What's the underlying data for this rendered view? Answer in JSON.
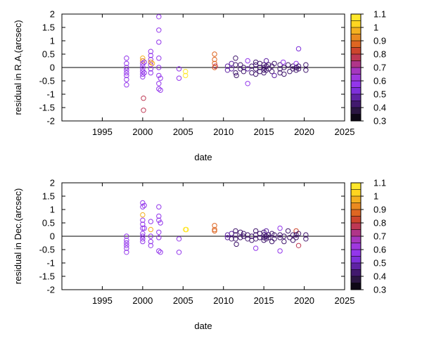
{
  "chart_data": [
    {
      "type": "scatter",
      "xlabel": "date",
      "ylabel": "residual in R.A.(arcsec)",
      "xlim": [
        1990,
        2025
      ],
      "ylim": [
        -2,
        2
      ],
      "xticks": [
        "1995",
        "2000",
        "2005",
        "2010",
        "2015",
        "2020",
        "2025"
      ],
      "yticks": [
        "-2",
        "-1.5",
        "-1",
        "-0.5",
        "0",
        "0.5",
        "1",
        "1.5",
        "2"
      ],
      "zero_line": true,
      "points": [
        {
          "x": 1998.0,
          "y": 0.35,
          "c": 0.55
        },
        {
          "x": 1998.0,
          "y": 0.15,
          "c": 0.55
        },
        {
          "x": 1998.0,
          "y": 0.0,
          "c": 0.55
        },
        {
          "x": 1998.0,
          "y": -0.1,
          "c": 0.55
        },
        {
          "x": 1998.0,
          "y": -0.2,
          "c": 0.55
        },
        {
          "x": 1998.0,
          "y": -0.3,
          "c": 0.55
        },
        {
          "x": 1998.0,
          "y": -0.45,
          "c": 0.55
        },
        {
          "x": 1998.0,
          "y": -0.65,
          "c": 0.55
        },
        {
          "x": 2000.0,
          "y": 0.35,
          "c": 1.0
        },
        {
          "x": 2000.0,
          "y": 0.25,
          "c": 0.9
        },
        {
          "x": 2000.0,
          "y": 0.15,
          "c": 0.6
        },
        {
          "x": 2000.0,
          "y": 0.05,
          "c": 0.6
        },
        {
          "x": 2000.0,
          "y": -0.05,
          "c": 0.6
        },
        {
          "x": 2000.0,
          "y": -0.15,
          "c": 0.6
        },
        {
          "x": 2000.0,
          "y": -0.25,
          "c": 0.6
        },
        {
          "x": 2000.0,
          "y": -0.35,
          "c": 0.6
        },
        {
          "x": 2000.1,
          "y": -1.15,
          "c": 0.75
        },
        {
          "x": 2000.1,
          "y": -1.6,
          "c": 0.75
        },
        {
          "x": 2000.2,
          "y": 0.2,
          "c": 0.6
        },
        {
          "x": 2000.2,
          "y": -0.2,
          "c": 0.6
        },
        {
          "x": 2001.0,
          "y": 0.6,
          "c": 0.55
        },
        {
          "x": 2001.0,
          "y": 0.45,
          "c": 0.55
        },
        {
          "x": 2001.0,
          "y": 0.3,
          "c": 0.55
        },
        {
          "x": 2001.0,
          "y": 0.2,
          "c": 0.95
        },
        {
          "x": 2001.0,
          "y": 0.1,
          "c": 0.55
        },
        {
          "x": 2001.0,
          "y": -0.05,
          "c": 0.55
        },
        {
          "x": 2001.0,
          "y": -0.2,
          "c": 0.55
        },
        {
          "x": 2001.2,
          "y": 0.15,
          "c": 1.0
        },
        {
          "x": 2002.0,
          "y": 1.9,
          "c": 0.55
        },
        {
          "x": 2002.0,
          "y": 1.4,
          "c": 0.55
        },
        {
          "x": 2002.0,
          "y": 0.95,
          "c": 0.55
        },
        {
          "x": 2002.0,
          "y": 0.35,
          "c": 0.55
        },
        {
          "x": 2002.0,
          "y": 0.0,
          "c": 0.55
        },
        {
          "x": 2002.0,
          "y": -0.3,
          "c": 0.55
        },
        {
          "x": 2002.0,
          "y": -0.6,
          "c": 0.55
        },
        {
          "x": 2002.0,
          "y": -0.8,
          "c": 0.55
        },
        {
          "x": 2002.2,
          "y": -0.4,
          "c": 0.55
        },
        {
          "x": 2002.2,
          "y": -0.85,
          "c": 0.55
        },
        {
          "x": 2004.5,
          "y": -0.05,
          "c": 0.55
        },
        {
          "x": 2004.5,
          "y": -0.4,
          "c": 0.55
        },
        {
          "x": 2005.3,
          "y": -0.15,
          "c": 1.05
        },
        {
          "x": 2005.3,
          "y": -0.3,
          "c": 1.05
        },
        {
          "x": 2008.9,
          "y": 0.5,
          "c": 0.85
        },
        {
          "x": 2008.9,
          "y": 0.3,
          "c": 0.85
        },
        {
          "x": 2008.9,
          "y": 0.15,
          "c": 0.85
        },
        {
          "x": 2008.9,
          "y": 0.0,
          "c": 0.85
        },
        {
          "x": 2009.0,
          "y": 0.05,
          "c": 0.75
        },
        {
          "x": 2010.5,
          "y": -0.1,
          "c": 0.45
        },
        {
          "x": 2010.5,
          "y": 0.05,
          "c": 0.45
        },
        {
          "x": 2011.0,
          "y": 0.15,
          "c": 0.45
        },
        {
          "x": 2011.0,
          "y": -0.05,
          "c": 0.45
        },
        {
          "x": 2011.5,
          "y": 0.35,
          "c": 0.4
        },
        {
          "x": 2011.5,
          "y": 0.1,
          "c": 0.4
        },
        {
          "x": 2011.5,
          "y": -0.2,
          "c": 0.4
        },
        {
          "x": 2011.6,
          "y": -0.3,
          "c": 0.4
        },
        {
          "x": 2012.1,
          "y": 0.1,
          "c": 0.4
        },
        {
          "x": 2012.1,
          "y": -0.05,
          "c": 0.4
        },
        {
          "x": 2012.5,
          "y": 0.0,
          "c": 0.4
        },
        {
          "x": 2012.5,
          "y": -0.15,
          "c": 0.4
        },
        {
          "x": 2013.0,
          "y": 0.25,
          "c": 0.55
        },
        {
          "x": 2013.0,
          "y": -0.05,
          "c": 0.45
        },
        {
          "x": 2013.0,
          "y": -0.6,
          "c": 0.55
        },
        {
          "x": 2013.5,
          "y": 0.05,
          "c": 0.4
        },
        {
          "x": 2013.5,
          "y": -0.2,
          "c": 0.4
        },
        {
          "x": 2014.0,
          "y": 0.2,
          "c": 0.4
        },
        {
          "x": 2014.0,
          "y": 0.1,
          "c": 0.4
        },
        {
          "x": 2014.0,
          "y": -0.05,
          "c": 0.4
        },
        {
          "x": 2014.0,
          "y": -0.25,
          "c": 0.4
        },
        {
          "x": 2014.5,
          "y": 0.15,
          "c": 0.4
        },
        {
          "x": 2014.5,
          "y": 0.0,
          "c": 0.4
        },
        {
          "x": 2014.5,
          "y": -0.15,
          "c": 0.4
        },
        {
          "x": 2015.0,
          "y": 0.1,
          "c": 0.4
        },
        {
          "x": 2015.0,
          "y": 0.0,
          "c": 0.4
        },
        {
          "x": 2015.0,
          "y": -0.1,
          "c": 0.4
        },
        {
          "x": 2015.0,
          "y": -0.2,
          "c": 0.4
        },
        {
          "x": 2015.3,
          "y": 0.25,
          "c": 0.45
        },
        {
          "x": 2015.3,
          "y": 0.05,
          "c": 0.4
        },
        {
          "x": 2015.3,
          "y": -0.1,
          "c": 0.4
        },
        {
          "x": 2015.6,
          "y": 0.1,
          "c": 0.4
        },
        {
          "x": 2015.6,
          "y": -0.05,
          "c": 0.4
        },
        {
          "x": 2016.0,
          "y": 0.05,
          "c": 0.4
        },
        {
          "x": 2016.0,
          "y": -0.15,
          "c": 0.4
        },
        {
          "x": 2016.3,
          "y": 0.15,
          "c": 0.4
        },
        {
          "x": 2016.3,
          "y": -0.3,
          "c": 0.45
        },
        {
          "x": 2017.0,
          "y": 0.1,
          "c": 0.4
        },
        {
          "x": 2017.0,
          "y": -0.05,
          "c": 0.4
        },
        {
          "x": 2017.0,
          "y": -0.2,
          "c": 0.4
        },
        {
          "x": 2017.4,
          "y": 0.2,
          "c": 0.55
        },
        {
          "x": 2017.5,
          "y": 0.0,
          "c": 0.4
        },
        {
          "x": 2017.5,
          "y": -0.25,
          "c": 0.4
        },
        {
          "x": 2018.0,
          "y": 0.1,
          "c": 0.4
        },
        {
          "x": 2018.2,
          "y": -0.15,
          "c": 0.4
        },
        {
          "x": 2018.6,
          "y": 0.05,
          "c": 0.4
        },
        {
          "x": 2018.6,
          "y": -0.05,
          "c": 0.4
        },
        {
          "x": 2019.0,
          "y": 0.15,
          "c": 0.55
        },
        {
          "x": 2019.0,
          "y": 0.0,
          "c": 0.4
        },
        {
          "x": 2019.0,
          "y": -0.1,
          "c": 0.4
        },
        {
          "x": 2019.3,
          "y": 0.7,
          "c": 0.5
        },
        {
          "x": 2019.3,
          "y": 0.05,
          "c": 0.4
        },
        {
          "x": 2019.3,
          "y": -0.05,
          "c": 0.4
        },
        {
          "x": 2020.2,
          "y": 0.1,
          "c": 0.4
        },
        {
          "x": 2020.2,
          "y": -0.1,
          "c": 0.4
        }
      ]
    },
    {
      "type": "scatter",
      "xlabel": "date",
      "ylabel": "residual in Dec.(arcsec)",
      "xlim": [
        1990,
        2025
      ],
      "ylim": [
        -2,
        2
      ],
      "xticks": [
        "1995",
        "2000",
        "2005",
        "2010",
        "2015",
        "2020",
        "2025"
      ],
      "yticks": [
        "-2",
        "-1.5",
        "-1",
        "-0.5",
        "0",
        "0.5",
        "1",
        "1.5",
        "2"
      ],
      "zero_line": true,
      "points": [
        {
          "x": 1998.0,
          "y": 0.0,
          "c": 0.55
        },
        {
          "x": 1998.0,
          "y": -0.15,
          "c": 0.55
        },
        {
          "x": 1998.0,
          "y": -0.25,
          "c": 0.55
        },
        {
          "x": 1998.0,
          "y": -0.35,
          "c": 0.55
        },
        {
          "x": 1998.0,
          "y": -0.45,
          "c": 0.55
        },
        {
          "x": 1998.0,
          "y": -0.6,
          "c": 0.55
        },
        {
          "x": 2000.0,
          "y": 1.25,
          "c": 0.55
        },
        {
          "x": 2000.0,
          "y": 1.1,
          "c": 0.55
        },
        {
          "x": 2000.0,
          "y": 0.8,
          "c": 1.0
        },
        {
          "x": 2000.0,
          "y": 0.6,
          "c": 0.55
        },
        {
          "x": 2000.0,
          "y": 0.45,
          "c": 0.55
        },
        {
          "x": 2000.0,
          "y": 0.3,
          "c": 0.55
        },
        {
          "x": 2000.0,
          "y": 0.1,
          "c": 0.55
        },
        {
          "x": 2000.0,
          "y": 0.0,
          "c": 0.55
        },
        {
          "x": 2000.0,
          "y": -0.1,
          "c": 0.55
        },
        {
          "x": 2000.0,
          "y": -0.2,
          "c": 0.55
        },
        {
          "x": 2000.2,
          "y": 1.15,
          "c": 0.55
        },
        {
          "x": 2000.2,
          "y": 0.3,
          "c": 0.6
        },
        {
          "x": 2001.0,
          "y": 0.55,
          "c": 0.55
        },
        {
          "x": 2001.0,
          "y": 0.25,
          "c": 1.0
        },
        {
          "x": 2001.0,
          "y": 0.0,
          "c": 0.55
        },
        {
          "x": 2001.0,
          "y": -0.2,
          "c": 0.55
        },
        {
          "x": 2001.0,
          "y": -0.35,
          "c": 0.55
        },
        {
          "x": 2002.0,
          "y": 1.1,
          "c": 0.55
        },
        {
          "x": 2002.0,
          "y": 0.75,
          "c": 0.55
        },
        {
          "x": 2002.0,
          "y": 0.6,
          "c": 0.55
        },
        {
          "x": 2002.0,
          "y": 0.15,
          "c": 0.55
        },
        {
          "x": 2002.0,
          "y": -0.05,
          "c": 0.55
        },
        {
          "x": 2002.0,
          "y": -0.55,
          "c": 0.55
        },
        {
          "x": 2002.2,
          "y": 0.5,
          "c": 0.55
        },
        {
          "x": 2002.2,
          "y": -0.6,
          "c": 0.55
        },
        {
          "x": 2004.5,
          "y": -0.1,
          "c": 0.55
        },
        {
          "x": 2004.5,
          "y": -0.6,
          "c": 0.55
        },
        {
          "x": 2005.3,
          "y": 0.25,
          "c": 1.05
        },
        {
          "x": 2005.4,
          "y": 0.25,
          "c": 1.05
        },
        {
          "x": 2008.9,
          "y": 0.4,
          "c": 0.85
        },
        {
          "x": 2008.9,
          "y": 0.25,
          "c": 0.85
        },
        {
          "x": 2008.9,
          "y": 0.2,
          "c": 0.85
        },
        {
          "x": 2010.5,
          "y": -0.05,
          "c": 0.45
        },
        {
          "x": 2010.5,
          "y": 0.05,
          "c": 0.45
        },
        {
          "x": 2011.0,
          "y": 0.1,
          "c": 0.45
        },
        {
          "x": 2011.0,
          "y": -0.1,
          "c": 0.4
        },
        {
          "x": 2011.5,
          "y": 0.2,
          "c": 0.4
        },
        {
          "x": 2011.5,
          "y": 0.05,
          "c": 0.4
        },
        {
          "x": 2011.5,
          "y": -0.1,
          "c": 0.4
        },
        {
          "x": 2011.6,
          "y": -0.3,
          "c": 0.4
        },
        {
          "x": 2012.1,
          "y": 0.15,
          "c": 0.4
        },
        {
          "x": 2012.1,
          "y": -0.05,
          "c": 0.4
        },
        {
          "x": 2012.5,
          "y": 0.0,
          "c": 0.4
        },
        {
          "x": 2012.5,
          "y": 0.1,
          "c": 0.4
        },
        {
          "x": 2013.0,
          "y": 0.05,
          "c": 0.4
        },
        {
          "x": 2013.0,
          "y": -0.1,
          "c": 0.4
        },
        {
          "x": 2013.5,
          "y": 0.0,
          "c": 0.4
        },
        {
          "x": 2013.5,
          "y": -0.15,
          "c": 0.4
        },
        {
          "x": 2014.0,
          "y": 0.2,
          "c": 0.4
        },
        {
          "x": 2014.0,
          "y": 0.05,
          "c": 0.4
        },
        {
          "x": 2014.0,
          "y": -0.1,
          "c": 0.4
        },
        {
          "x": 2014.0,
          "y": -0.45,
          "c": 0.55
        },
        {
          "x": 2014.5,
          "y": 0.1,
          "c": 0.4
        },
        {
          "x": 2014.5,
          "y": -0.05,
          "c": 0.4
        },
        {
          "x": 2015.0,
          "y": 0.15,
          "c": 0.4
        },
        {
          "x": 2015.0,
          "y": 0.05,
          "c": 0.4
        },
        {
          "x": 2015.0,
          "y": -0.05,
          "c": 0.4
        },
        {
          "x": 2015.0,
          "y": -0.15,
          "c": 0.4
        },
        {
          "x": 2015.3,
          "y": 0.2,
          "c": 0.45
        },
        {
          "x": 2015.3,
          "y": 0.0,
          "c": 0.4
        },
        {
          "x": 2015.3,
          "y": -0.1,
          "c": 0.4
        },
        {
          "x": 2015.6,
          "y": 0.05,
          "c": 0.4
        },
        {
          "x": 2015.6,
          "y": -0.05,
          "c": 0.4
        },
        {
          "x": 2016.0,
          "y": 0.1,
          "c": 0.4
        },
        {
          "x": 2016.0,
          "y": -0.2,
          "c": 0.4
        },
        {
          "x": 2016.3,
          "y": 0.05,
          "c": 0.4
        },
        {
          "x": 2016.3,
          "y": -0.1,
          "c": 0.4
        },
        {
          "x": 2017.0,
          "y": 0.3,
          "c": 0.55
        },
        {
          "x": 2017.0,
          "y": 0.05,
          "c": 0.4
        },
        {
          "x": 2017.0,
          "y": -0.05,
          "c": 0.4
        },
        {
          "x": 2017.0,
          "y": -0.55,
          "c": 0.55
        },
        {
          "x": 2017.5,
          "y": 0.0,
          "c": 0.4
        },
        {
          "x": 2017.5,
          "y": -0.2,
          "c": 0.4
        },
        {
          "x": 2018.0,
          "y": 0.2,
          "c": 0.4
        },
        {
          "x": 2018.2,
          "y": -0.05,
          "c": 0.4
        },
        {
          "x": 2018.6,
          "y": 0.05,
          "c": 0.4
        },
        {
          "x": 2018.6,
          "y": -0.15,
          "c": 0.4
        },
        {
          "x": 2019.0,
          "y": 0.2,
          "c": 0.8
        },
        {
          "x": 2019.0,
          "y": 0.05,
          "c": 0.4
        },
        {
          "x": 2019.0,
          "y": -0.05,
          "c": 0.4
        },
        {
          "x": 2019.3,
          "y": -0.35,
          "c": 0.75
        },
        {
          "x": 2019.3,
          "y": 0.1,
          "c": 0.4
        },
        {
          "x": 2020.2,
          "y": 0.05,
          "c": 0.4
        },
        {
          "x": 2020.2,
          "y": -0.1,
          "c": 0.4
        }
      ]
    }
  ],
  "colorbar": {
    "range": [
      0.3,
      1.1
    ],
    "ticks": [
      "0.3",
      "0.4",
      "0.5",
      "0.6",
      "0.7",
      "0.8",
      "0.9",
      "1",
      "1.1"
    ],
    "bands": 16,
    "stops": [
      "#000000",
      "#2a1640",
      "#4b1a80",
      "#7b2fd8",
      "#9a38f0",
      "#a437cc",
      "#b2357c",
      "#c83a30",
      "#e06a20",
      "#f0a020",
      "#ffd820",
      "#ffef30"
    ]
  },
  "colors": {
    "axis": "#000000",
    "background": "#ffffff"
  }
}
